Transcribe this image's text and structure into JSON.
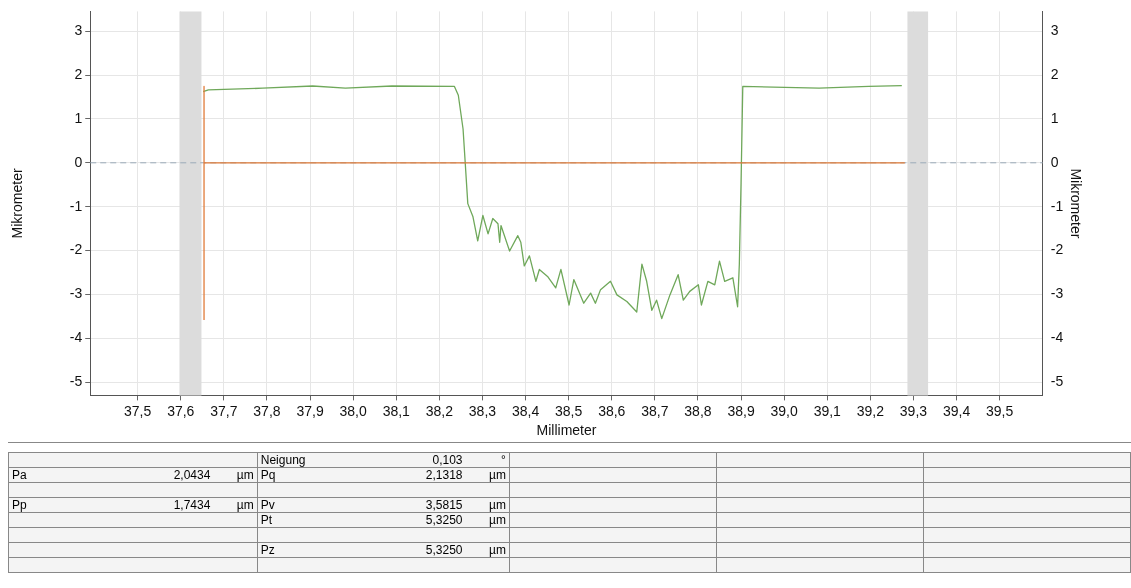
{
  "chart_data": {
    "type": "line",
    "xlabel": "Millimeter",
    "ylabel": "Mikrometer",
    "y2label": "Mikrometer",
    "xlim": [
      37.39,
      39.6
    ],
    "xticks": [
      {
        "value": 37.5,
        "label": "37,5"
      },
      {
        "value": 37.6,
        "label": "37,6"
      },
      {
        "value": 37.7,
        "label": "37,7"
      },
      {
        "value": 37.8,
        "label": "37,8"
      },
      {
        "value": 37.9,
        "label": "37,9"
      },
      {
        "value": 38.0,
        "label": "38,0"
      },
      {
        "value": 38.1,
        "label": "38,1"
      },
      {
        "value": 38.2,
        "label": "38,2"
      },
      {
        "value": 38.3,
        "label": "38,3"
      },
      {
        "value": 38.4,
        "label": "38,4"
      },
      {
        "value": 38.5,
        "label": "38,5"
      },
      {
        "value": 38.6,
        "label": "38,6"
      },
      {
        "value": 38.7,
        "label": "38,7"
      },
      {
        "value": 38.8,
        "label": "38,8"
      },
      {
        "value": 38.9,
        "label": "38,9"
      },
      {
        "value": 39.0,
        "label": "39,0"
      },
      {
        "value": 39.1,
        "label": "39,1"
      },
      {
        "value": 39.2,
        "label": "39,2"
      },
      {
        "value": 39.3,
        "label": "39,3"
      },
      {
        "value": 39.4,
        "label": "39,4"
      },
      {
        "value": 39.5,
        "label": "39,5"
      }
    ],
    "ylim": [
      -5.3,
      3.45
    ],
    "yticks": [
      -5,
      -4,
      -3,
      -2,
      -1,
      0,
      1,
      2,
      3
    ],
    "y2lim": [
      -5.3,
      3.45
    ],
    "y2ticks": [
      -5,
      -4,
      -3,
      -2,
      -1,
      0,
      1,
      2,
      3
    ],
    "grid": true,
    "legend": false,
    "marker": "none",
    "line_style": "solid",
    "series": [
      {
        "color": "#e07b39",
        "x": [
          37.654,
          37.654,
          37.654,
          39.28
        ],
        "values": [
          -3.58,
          1.74,
          0,
          0
        ]
      },
      {
        "color": "#6fa85a",
        "x": [
          37.652,
          37.664,
          37.79,
          37.906,
          37.982,
          38.09,
          38.235,
          38.244,
          38.255,
          38.26,
          38.266,
          38.278,
          38.289,
          38.301,
          38.313,
          38.324,
          38.336,
          38.34,
          38.343,
          38.363,
          38.382,
          38.389,
          38.397,
          38.409,
          38.424,
          38.432,
          38.451,
          38.47,
          38.482,
          38.501,
          38.512,
          38.535,
          38.551,
          38.562,
          38.574,
          38.597,
          38.612,
          38.635,
          38.658,
          38.67,
          38.681,
          38.693,
          38.704,
          38.716,
          38.735,
          38.754,
          38.766,
          38.781,
          38.801,
          38.808,
          38.823,
          38.839,
          38.85,
          38.862,
          38.881,
          38.892,
          38.896,
          38.9,
          38.904,
          39.081,
          39.196,
          39.273
        ],
        "values": [
          1.62,
          1.66,
          1.7,
          1.75,
          1.7,
          1.75,
          1.74,
          1.54,
          0.77,
          0,
          -0.93,
          -1.23,
          -1.78,
          -1.2,
          -1.62,
          -1.27,
          -1.39,
          -1.81,
          -1.43,
          -2.01,
          -1.66,
          -1.81,
          -2.35,
          -2.12,
          -2.7,
          -2.43,
          -2.59,
          -2.85,
          -2.43,
          -3.24,
          -2.66,
          -3.2,
          -2.97,
          -3.2,
          -2.89,
          -2.7,
          -3.01,
          -3.16,
          -3.4,
          -2.31,
          -2.7,
          -3.36,
          -3.13,
          -3.55,
          -3.01,
          -2.55,
          -3.13,
          -2.93,
          -2.78,
          -3.24,
          -2.7,
          -2.78,
          -2.24,
          -2.7,
          -2.62,
          -3.28,
          -2.31,
          -0.46,
          1.74,
          1.7,
          1.74,
          1.76
        ]
      }
    ],
    "ref_lines": [
      {
        "axis": "y",
        "value": 0,
        "color": "#9aaab8",
        "line_style": "dashed"
      }
    ],
    "bands": [
      {
        "axis": "x",
        "from": 37.597,
        "to": 37.648,
        "color": "#dcdcdc"
      },
      {
        "axis": "x",
        "from": 39.286,
        "to": 39.334,
        "color": "#dcdcdc"
      }
    ],
    "annotations": [
      "Neigung 0,103 °",
      "Pa 2,0434 µm",
      "Pq 2,1318 µm",
      "Pp 1,7434 µm",
      "Pv 3,5815 µm",
      "Pt 5,3250 µm",
      "Pz 5,3250 µm"
    ]
  }
}
